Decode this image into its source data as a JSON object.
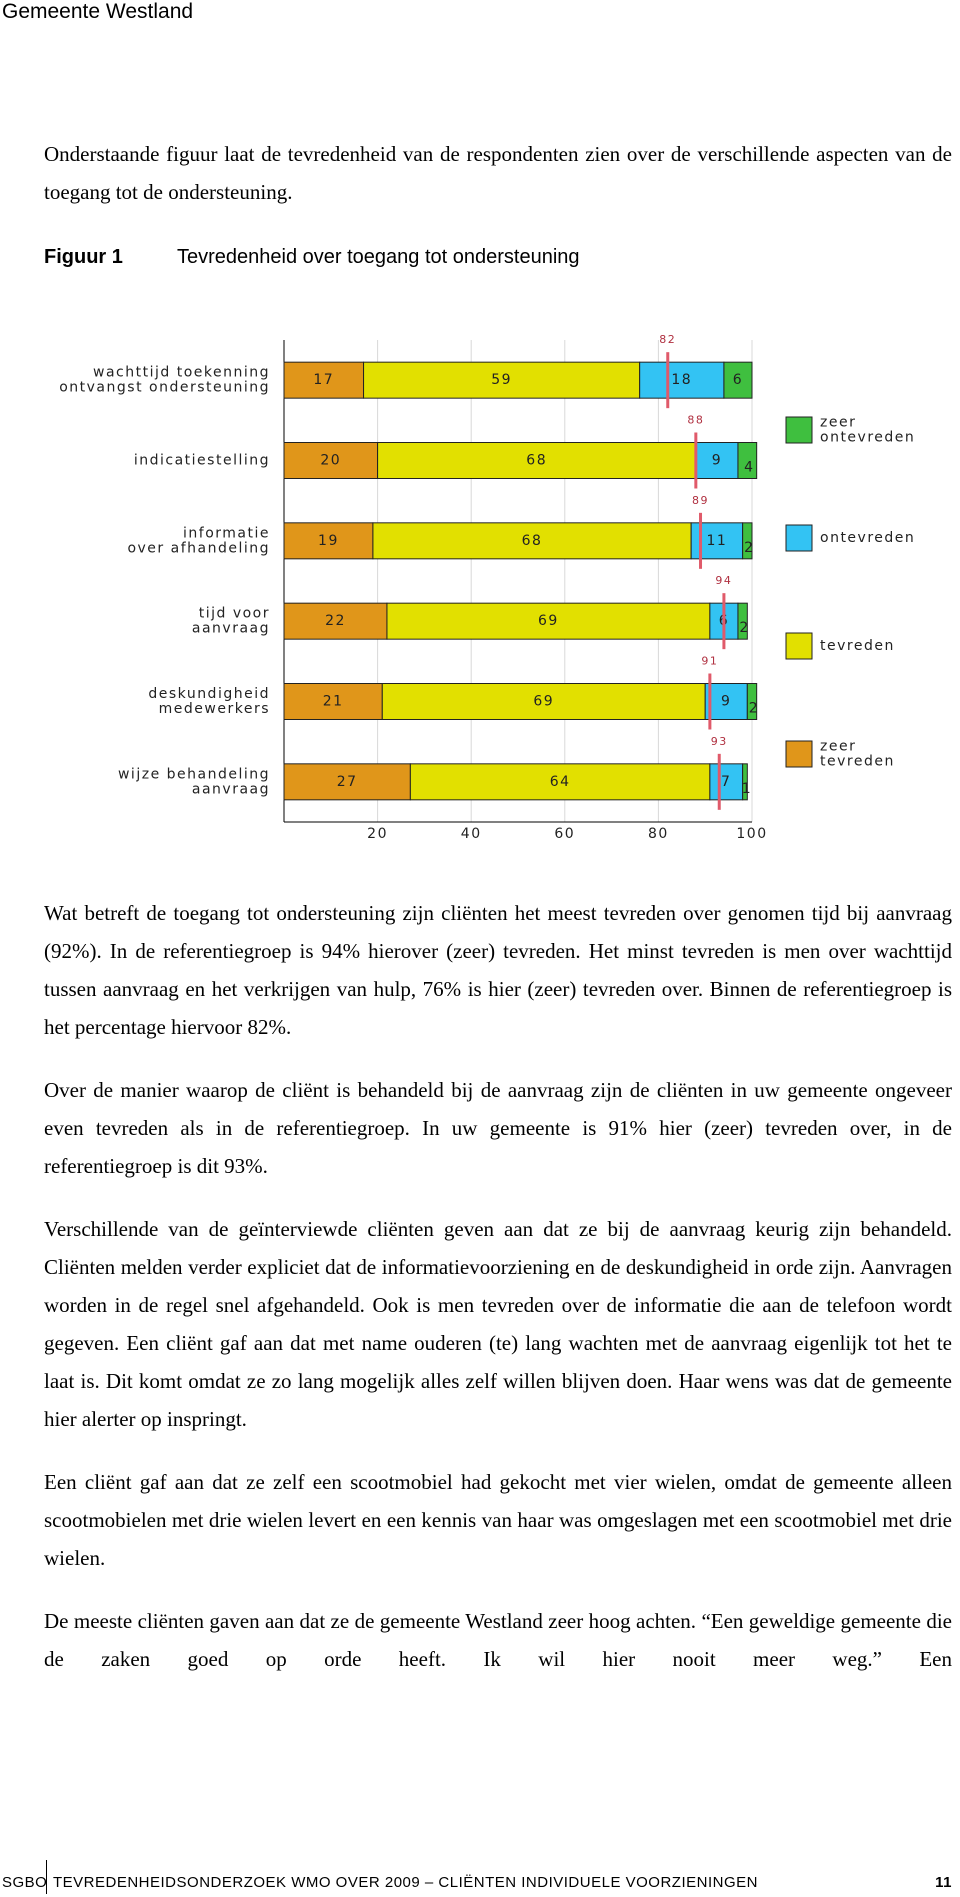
{
  "header": {
    "title": "Gemeente Westland"
  },
  "intro": "Onderstaande figuur laat de tevredenheid van de respondenten zien over de verschillende aspecten van de toegang tot de ondersteuning.",
  "figure": {
    "label": "Figuur 1",
    "caption": "Tevredenheid over toegang tot ondersteuning"
  },
  "chart_data": {
    "type": "stacked-bar-horizontal",
    "categories": [
      "wachttijd toekenning\nontvangst ondersteuning",
      "indicatiestelling",
      "informatie\nover afhandeling",
      "tijd voor\naanvraag",
      "deskundigheid\nmedewerkers",
      "wijze behandeling\naanvraag"
    ],
    "series": [
      {
        "name": "zeer\ntevreden",
        "color": "#e0961a",
        "values": [
          17,
          20,
          19,
          22,
          21,
          27
        ]
      },
      {
        "name": "tevreden",
        "color": "#e2e000",
        "values": [
          59,
          68,
          68,
          69,
          69,
          64
        ]
      },
      {
        "name": "ontevreden",
        "color": "#33c3f3",
        "values": [
          18,
          9,
          11,
          6,
          9,
          7
        ]
      },
      {
        "name": "zeer\nontevreden",
        "color": "#3fbf3f",
        "values": [
          6,
          4,
          2,
          2,
          2,
          1
        ]
      }
    ],
    "markers": {
      "color": "#e05a6a",
      "values": [
        82,
        88,
        89,
        94,
        91,
        93
      ]
    },
    "xlim": [
      0,
      100
    ],
    "xticks": [
      20,
      40,
      60,
      80,
      100
    ],
    "grid": true
  },
  "paragraphs": [
    "Wat betreft de toegang tot ondersteuning zijn cliënten het meest tevreden over genomen tijd bij aanvraag (92%). In de referentiegroep is 94% hierover (zeer) tevreden. Het minst tevreden is men over wachttijd tussen aanvraag en het verkrijgen van hulp, 76% is hier (zeer) tevreden over. Binnen de referentiegroep is het percentage hiervoor 82%.",
    "Over de manier waarop de cliënt is behandeld bij de aanvraag zijn de cliënten in uw gemeente ongeveer even tevreden als in de referentiegroep. In uw gemeente is 91% hier (zeer) tevreden over, in de referentiegroep is dit 93%.",
    "Verschillende van de geïnterviewde cliënten geven aan dat ze bij de aanvraag keurig zijn behandeld. Cliënten melden verder expliciet dat de informatievoorziening en de deskundigheid in orde zijn. Aanvragen worden in de regel snel afgehandeld. Ook is men tevreden over de informatie die aan de telefoon wordt gegeven. Een cliënt gaf aan dat met name ouderen (te) lang wachten met de aanvraag eigenlijk tot het te laat is. Dit komt omdat ze zo lang mogelijk alles zelf willen blijven doen. Haar wens was dat de gemeente hier alerter op inspringt.",
    "Een cliënt gaf aan dat ze zelf een scootmobiel had gekocht met vier wielen, omdat de gemeente alleen scootmobielen met drie wielen levert en een kennis van haar was omgeslagen met een scootmobiel met drie wielen.",
    "De meeste cliënten gaven aan dat ze de gemeente Westland zeer hoog achten. “Een geweldige gemeente die de zaken goed op orde heeft. Ik wil hier nooit meer weg.” Een"
  ],
  "footer": {
    "org": "SGBO",
    "title": "TEVREDENHEIDSONDERZOEK WMO OVER 2009 – CLIËNTEN INDIVIDUELE VOORZIENINGEN",
    "page": "11"
  }
}
